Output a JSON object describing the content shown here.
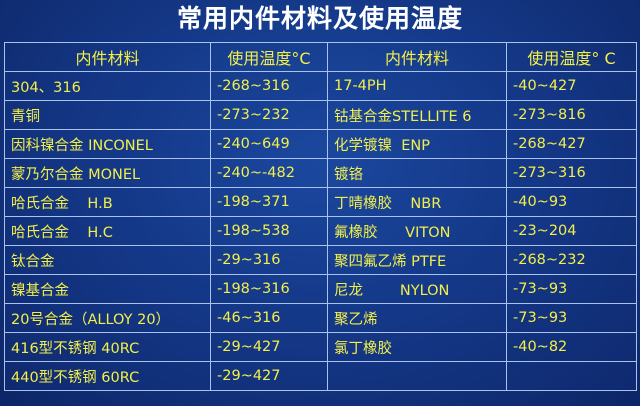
{
  "title": "常用内件材料及使用温度",
  "headers": [
    "内件材料",
    "使用温度°C",
    "内件材料",
    "使用温度° C"
  ],
  "rows": [
    [
      "304、316",
      "-268~316",
      "17-4PH",
      "-40~427"
    ],
    [
      "青铜",
      "-273~232",
      "钴基合金STELLITE 6",
      "-273~816"
    ],
    [
      "因科镍合金 INCONEL",
      "-240~649",
      "化学镀镍  ENP",
      "-268~427"
    ],
    [
      "蒙乃尔合金 MONEL",
      "-240~-482",
      "镀铬",
      "-273~316"
    ],
    [
      "哈氏合金    H.B",
      "-198~371",
      "丁晴橡胶    NBR",
      "-40~93"
    ],
    [
      "哈氏合金    H.C",
      "-198~538",
      "氟橡胶      VITON",
      "-23~204"
    ],
    [
      "钛合金",
      "-29~316",
      "聚四氟乙烯 PTFE",
      "-268~232"
    ],
    [
      "镍基合金",
      "-198~316",
      "尼龙        NYLON",
      "-73~93"
    ],
    [
      "20号合金（ALLOY 20）",
      "-46~316",
      "聚乙烯",
      "-73~93"
    ],
    [
      "416型不锈钢 40RC",
      "-29~427",
      "氯丁橡胶",
      "-40~82"
    ],
    [
      "440型不锈钢 60RC",
      "-29~427",
      "",
      ""
    ]
  ],
  "colors": {
    "text": "#f3ef4a",
    "title": "#ffffff",
    "grid": "#a9c2ee",
    "background": "#153a8a"
  }
}
